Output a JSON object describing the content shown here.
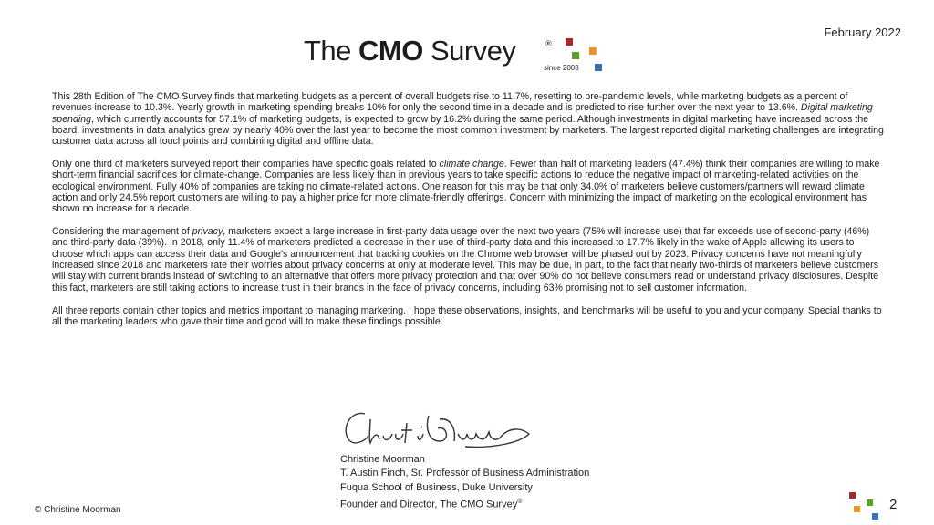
{
  "header": {
    "date": "February 2022",
    "logo": {
      "the": "The",
      "cmo": "CMO",
      "survey": "Survey",
      "registered": "®",
      "since": "since 2008"
    }
  },
  "paragraphs": [
    [
      "This 28th Edition of The CMO Survey finds that marketing budgets as a percent of overall budgets rise to 11.7%, resetting to pre-pandemic levels, while marketing budgets as a percent of revenues increase to 10.3%. Yearly growth in marketing spending breaks 10% for only the second time in a decade and is predicted to rise further over the next year to 13.6%. ",
      "Digital marketing spending",
      ", which currently accounts for 57.1% of marketing budgets, is expected to grow by 16.2% during the same period. Although investments in digital marketing have increased across the board, investments in data analytics grew by nearly 40% over the last year to become the most common investment by marketers. The largest reported digital marketing challenges are integrating customer data across all touchpoints and combining digital and offline data."
    ],
    [
      "Only one third of marketers surveyed report their companies have specific goals related to ",
      "climate change",
      ". Fewer than half of marketing leaders (47.4%) think their companies are willing to make short-term financial sacrifices for climate-change. Companies are less likely than in previous years to take specific actions to reduce the negative impact of marketing-related activities on the ecological environment. Fully 40% of companies are taking no climate-related actions. One reason for this may be that only 34.0% of marketers believe customers/partners will reward climate action and only 24.5% report customers are willing to pay a higher price for more climate-friendly offerings. Concern with minimizing the impact of marketing on the ecological environment has shown no increase for a decade."
    ],
    [
      "Considering the management of ",
      "privacy",
      ", marketers expect a large increase in first-party data usage over the next two years (75% will increase use) that far exceeds use of second-party (46%) and third-party data (39%). In 2018, only 11.4% of marketers predicted a decrease in their use of third-party data and this increased to 17.7% likely in the wake of Apple allowing its users to choose which apps can access their data and Google’s announcement that tracking cookies on the Chrome web browser will be phased out by 2023. Privacy concerns have not meaningfully increased since 2018 and marketers rate their worries about privacy concerns at only at moderate level. This may be due, in part, to the fact that nearly two-thirds of marketers believe customers will stay with current brands instead of switching to an alternative that offers more privacy protection and that over 90% do not believe consumers read or understand privacy disclosures. Despite this fact, marketers are still taking actions to increase trust in their brands in the face of privacy concerns, including 63% promising not to sell customer information."
    ],
    [
      "All three reports contain other topics and metrics important to managing marketing. I hope these observations, insights, and benchmarks will be useful to you and your company. Special thanks to all the marketing leaders who gave their time and good will to make these findings possible."
    ]
  ],
  "signature": {
    "name": "Christine Moorman",
    "title": "T. Austin Finch, Sr. Professor of Business Administration",
    "school": "Fuqua School of Business, Duke University",
    "role": "Founder and Director, The CMO Survey",
    "role_mark": "®"
  },
  "footer": {
    "copyright": "© Christine Moorman",
    "page": "2"
  }
}
